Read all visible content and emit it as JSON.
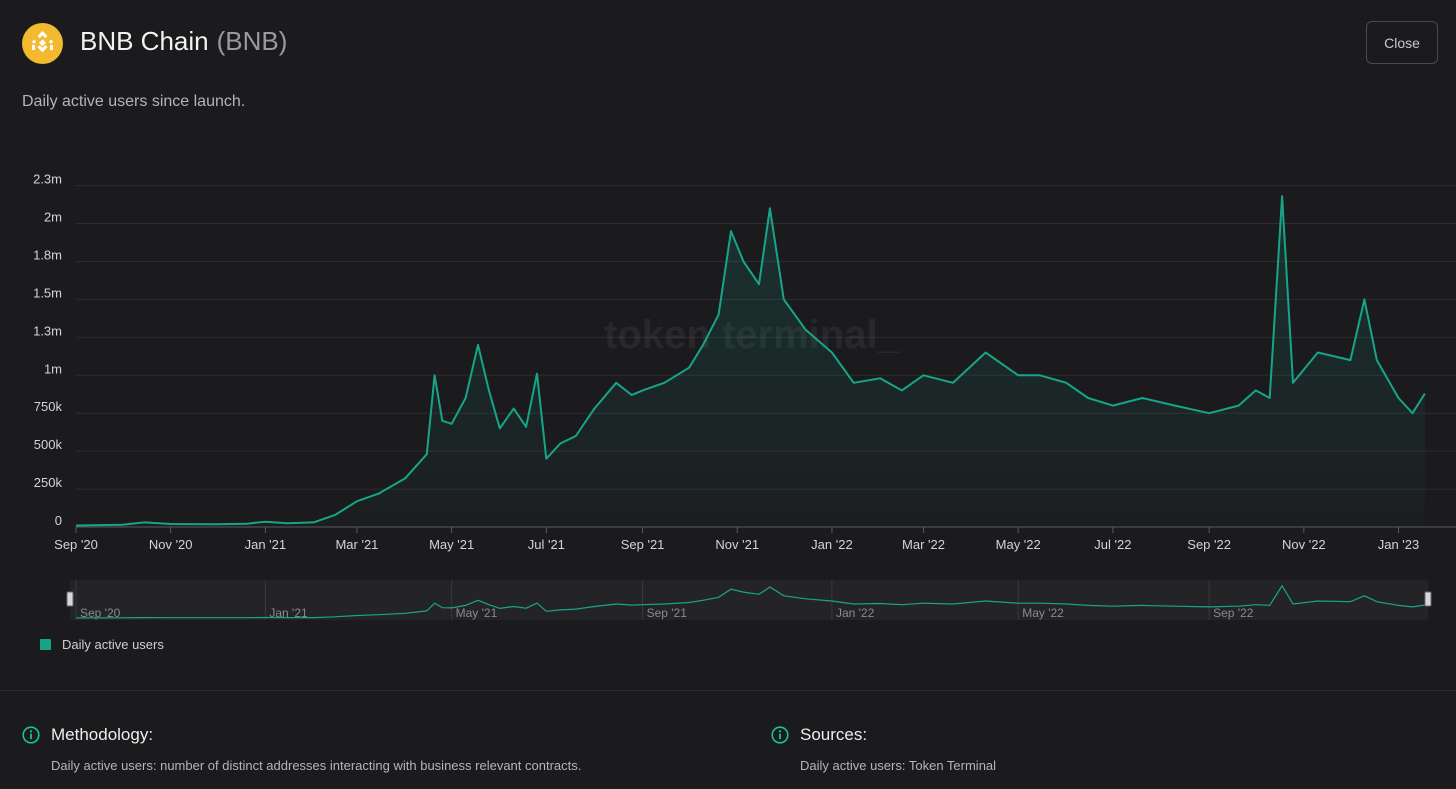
{
  "header": {
    "title": "BNB Chain",
    "ticker": "(BNB)",
    "close_label": "Close",
    "logo_icon": "bnb-logo-icon",
    "brand_color": "#F3BA2F"
  },
  "subtitle": "Daily active users since launch.",
  "chart_data": {
    "type": "area",
    "title": "",
    "xlabel": "",
    "ylabel": "",
    "ylim": [
      0,
      2300000
    ],
    "yticks": [
      {
        "value": 0,
        "label": "0"
      },
      {
        "value": 250000,
        "label": "250k"
      },
      {
        "value": 500000,
        "label": "500k"
      },
      {
        "value": 750000,
        "label": "750k"
      },
      {
        "value": 1000000,
        "label": "1m"
      },
      {
        "value": 1250000,
        "label": "1.3m"
      },
      {
        "value": 1500000,
        "label": "1.5m"
      },
      {
        "value": 1750000,
        "label": "1.8m"
      },
      {
        "value": 2000000,
        "label": "2m"
      },
      {
        "value": 2250000,
        "label": "2.3m"
      }
    ],
    "xlim": [
      "2020-09-01",
      "2023-01-20"
    ],
    "xticks": [
      {
        "date": "2020-09-01",
        "label": "Sep '20"
      },
      {
        "date": "2020-11-01",
        "label": "Nov '20"
      },
      {
        "date": "2021-01-01",
        "label": "Jan '21"
      },
      {
        "date": "2021-03-01",
        "label": "Mar '21"
      },
      {
        "date": "2021-05-01",
        "label": "May '21"
      },
      {
        "date": "2021-07-01",
        "label": "Jul '21"
      },
      {
        "date": "2021-09-01",
        "label": "Sep '21"
      },
      {
        "date": "2021-11-01",
        "label": "Nov '21"
      },
      {
        "date": "2022-01-01",
        "label": "Jan '22"
      },
      {
        "date": "2022-03-01",
        "label": "Mar '22"
      },
      {
        "date": "2022-05-01",
        "label": "May '22"
      },
      {
        "date": "2022-07-01",
        "label": "Jul '22"
      },
      {
        "date": "2022-09-01",
        "label": "Sep '22"
      },
      {
        "date": "2022-11-01",
        "label": "Nov '22"
      },
      {
        "date": "2023-01-01",
        "label": "Jan '23"
      }
    ],
    "navigator_ticks": [
      {
        "date": "2020-09-01",
        "label": "Sep '20"
      },
      {
        "date": "2021-01-01",
        "label": "Jan '21"
      },
      {
        "date": "2021-05-01",
        "label": "May '21"
      },
      {
        "date": "2021-09-01",
        "label": "Sep '21"
      },
      {
        "date": "2022-01-01",
        "label": "Jan '22"
      },
      {
        "date": "2022-05-01",
        "label": "May '22"
      },
      {
        "date": "2022-09-01",
        "label": "Sep '22"
      }
    ],
    "grid": true,
    "legend_position": "bottom-left",
    "watermark": "token terminal_",
    "series": [
      {
        "name": "Daily active users",
        "color": "#17a589",
        "points": [
          [
            "2020-09-01",
            10000
          ],
          [
            "2020-10-01",
            15000
          ],
          [
            "2020-10-15",
            30000
          ],
          [
            "2020-11-01",
            20000
          ],
          [
            "2020-12-01",
            18000
          ],
          [
            "2020-12-20",
            22000
          ],
          [
            "2021-01-01",
            35000
          ],
          [
            "2021-01-15",
            25000
          ],
          [
            "2021-02-01",
            30000
          ],
          [
            "2021-02-15",
            80000
          ],
          [
            "2021-03-01",
            170000
          ],
          [
            "2021-03-15",
            220000
          ],
          [
            "2021-04-01",
            320000
          ],
          [
            "2021-04-15",
            480000
          ],
          [
            "2021-04-20",
            1000000
          ],
          [
            "2021-04-25",
            700000
          ],
          [
            "2021-05-01",
            680000
          ],
          [
            "2021-05-10",
            850000
          ],
          [
            "2021-05-18",
            1200000
          ],
          [
            "2021-05-25",
            900000
          ],
          [
            "2021-06-01",
            650000
          ],
          [
            "2021-06-10",
            780000
          ],
          [
            "2021-06-18",
            660000
          ],
          [
            "2021-06-25",
            1010000
          ],
          [
            "2021-07-01",
            450000
          ],
          [
            "2021-07-10",
            550000
          ],
          [
            "2021-07-20",
            600000
          ],
          [
            "2021-08-01",
            780000
          ],
          [
            "2021-08-15",
            950000
          ],
          [
            "2021-08-25",
            870000
          ],
          [
            "2021-09-01",
            900000
          ],
          [
            "2021-09-15",
            950000
          ],
          [
            "2021-10-01",
            1050000
          ],
          [
            "2021-10-10",
            1200000
          ],
          [
            "2021-10-20",
            1400000
          ],
          [
            "2021-10-28",
            1950000
          ],
          [
            "2021-11-05",
            1750000
          ],
          [
            "2021-11-15",
            1600000
          ],
          [
            "2021-11-22",
            2100000
          ],
          [
            "2021-12-01",
            1500000
          ],
          [
            "2021-12-15",
            1300000
          ],
          [
            "2022-01-01",
            1150000
          ],
          [
            "2022-01-15",
            950000
          ],
          [
            "2022-02-01",
            980000
          ],
          [
            "2022-02-15",
            900000
          ],
          [
            "2022-03-01",
            1000000
          ],
          [
            "2022-03-20",
            950000
          ],
          [
            "2022-04-10",
            1150000
          ],
          [
            "2022-05-01",
            1000000
          ],
          [
            "2022-05-15",
            1000000
          ],
          [
            "2022-06-01",
            950000
          ],
          [
            "2022-06-15",
            850000
          ],
          [
            "2022-07-01",
            800000
          ],
          [
            "2022-07-20",
            850000
          ],
          [
            "2022-08-10",
            800000
          ],
          [
            "2022-09-01",
            750000
          ],
          [
            "2022-09-20",
            800000
          ],
          [
            "2022-10-01",
            900000
          ],
          [
            "2022-10-10",
            850000
          ],
          [
            "2022-10-18",
            2180000
          ],
          [
            "2022-10-25",
            950000
          ],
          [
            "2022-11-10",
            1150000
          ],
          [
            "2022-12-01",
            1100000
          ],
          [
            "2022-12-10",
            1500000
          ],
          [
            "2022-12-18",
            1100000
          ],
          [
            "2023-01-01",
            850000
          ],
          [
            "2023-01-10",
            750000
          ],
          [
            "2023-01-18",
            880000
          ]
        ]
      }
    ]
  },
  "legend": {
    "label": "Daily active users",
    "color": "#17a589"
  },
  "methodology": {
    "title": "Methodology:",
    "text": "Daily active users: number of distinct addresses interacting with business relevant contracts."
  },
  "sources": {
    "title": "Sources:",
    "text": "Daily active users: Token Terminal"
  }
}
